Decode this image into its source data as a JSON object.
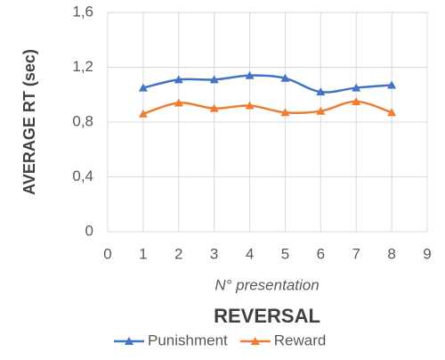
{
  "chart_data": {
    "type": "line",
    "title": "REVERSAL",
    "x_label": "N° presentation",
    "y_label": "AVERAGE RT (sec)",
    "x": [
      1,
      2,
      3,
      4,
      5,
      6,
      7,
      8
    ],
    "series": [
      {
        "name": "Punishment",
        "color": "#4472c4",
        "values": [
          1.05,
          1.11,
          1.11,
          1.14,
          1.12,
          1.02,
          1.05,
          1.07
        ]
      },
      {
        "name": "Reward",
        "color": "#ed7d31",
        "values": [
          0.86,
          0.94,
          0.9,
          0.92,
          0.87,
          0.88,
          0.95,
          0.87
        ]
      }
    ],
    "xlim": [
      0,
      9
    ],
    "xticks": [
      0,
      1,
      2,
      3,
      4,
      5,
      6,
      7,
      8,
      9
    ],
    "ylim": [
      0,
      1.6
    ],
    "yticks": [
      0,
      {
        "value": 0.4,
        "label": "0,4"
      },
      {
        "value": 0.8,
        "label": "0,8"
      },
      {
        "value": 1.2,
        "label": "1,2"
      },
      {
        "value": 1.6,
        "label": "1,6"
      }
    ],
    "grid": true,
    "legend": "bottom"
  }
}
